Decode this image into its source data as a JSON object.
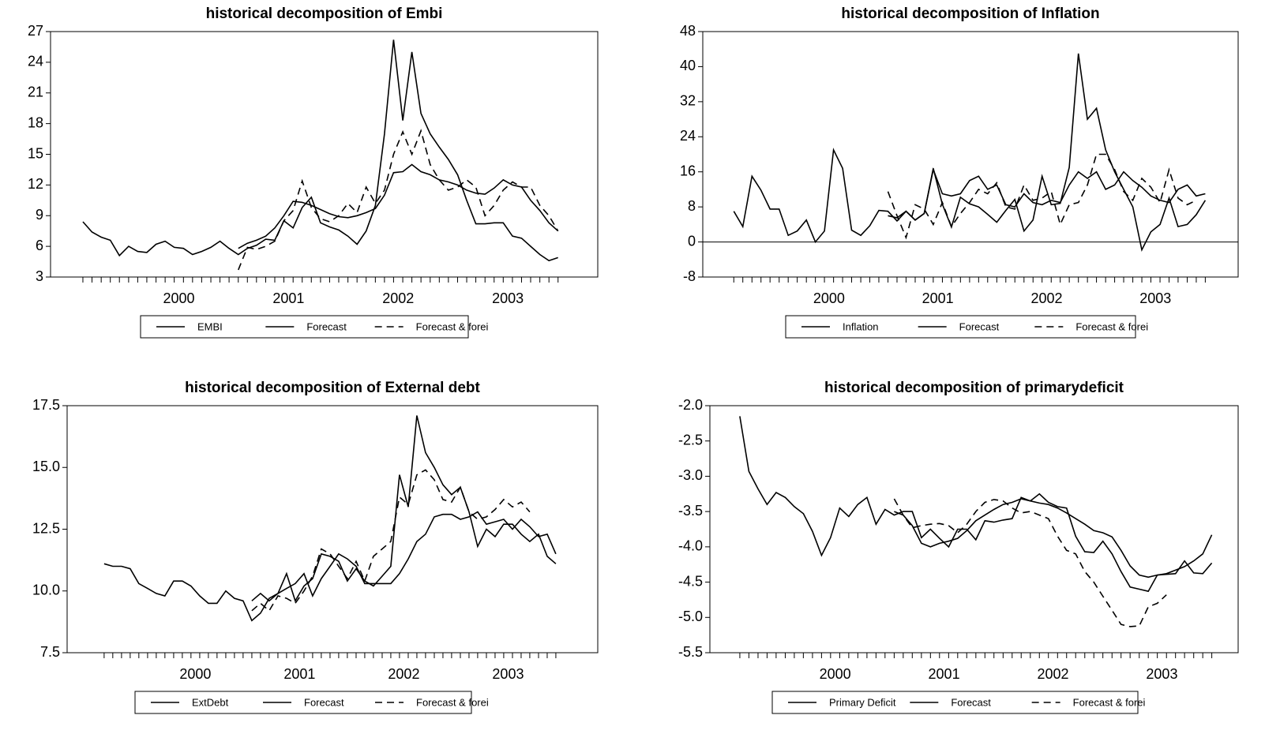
{
  "chart_data": [
    {
      "type": "line",
      "title": "historical decomposition of Embi",
      "x": [
        1999.625,
        1999.708,
        1999.792,
        1999.875,
        1999.958,
        2000.042,
        2000.125,
        2000.208,
        2000.292,
        2000.375,
        2000.458,
        2000.542,
        2000.625,
        2000.708,
        2000.792,
        2000.875,
        2000.958,
        2001.042,
        2001.125,
        2001.208,
        2001.292,
        2001.375,
        2001.458,
        2001.542,
        2001.625,
        2001.708,
        2001.792,
        2001.875,
        2001.958,
        2002.042,
        2002.125,
        2002.208,
        2002.292,
        2002.375,
        2002.458,
        2002.542,
        2002.625,
        2002.708,
        2002.792,
        2002.875,
        2002.958,
        2003.042,
        2003.125,
        2003.208,
        2003.292,
        2003.375,
        2003.458,
        2003.542,
        2003.625,
        2003.708,
        2003.792,
        2003.875,
        2003.958
      ],
      "xlim": [
        1999.33,
        2004.32
      ],
      "xticks": [
        {
          "value": 2000.5,
          "label": "2000"
        },
        {
          "value": 2001.5,
          "label": "2001"
        },
        {
          "value": 2002.5,
          "label": "2002"
        },
        {
          "value": 2003.5,
          "label": "2003"
        }
      ],
      "ylim": [
        3,
        27
      ],
      "yticks": [
        3,
        6,
        9,
        12,
        15,
        18,
        21,
        24,
        27
      ],
      "series": [
        {
          "name": "EMBI",
          "color": "#000000",
          "linestyle": "solid",
          "values": [
            8.4,
            7.4,
            6.9,
            6.6,
            5.1,
            6.0,
            5.5,
            5.4,
            6.2,
            6.5,
            5.9,
            5.8,
            5.2,
            5.5,
            5.9,
            6.5,
            5.8,
            5.2,
            5.8,
            6.1,
            6.7,
            6.6,
            8.5,
            7.8,
            9.8,
            10.8,
            8.3,
            7.9,
            7.6,
            7.0,
            6.2,
            7.5,
            10.0,
            17.0,
            26.2,
            18.3,
            25.0,
            19.0,
            17.0,
            15.7,
            14.5,
            13.0,
            10.5,
            8.2,
            8.2,
            8.3,
            8.3,
            7.0,
            6.8,
            6.0,
            5.2,
            4.6,
            4.9
          ]
        },
        {
          "name": "Forecast",
          "color": "#000000",
          "linestyle": "solid",
          "values": [
            null,
            null,
            null,
            null,
            null,
            null,
            null,
            null,
            null,
            null,
            null,
            null,
            null,
            null,
            null,
            null,
            null,
            5.8,
            6.3,
            6.6,
            7.0,
            7.8,
            9.0,
            10.4,
            10.3,
            10.0,
            9.6,
            9.2,
            8.9,
            8.8,
            9.0,
            9.3,
            9.7,
            11.0,
            13.2,
            13.3,
            14.0,
            13.3,
            13.0,
            12.5,
            12.3,
            12.0,
            11.5,
            11.2,
            11.1,
            11.7,
            12.5,
            12.0,
            11.8,
            10.5,
            9.5,
            8.3,
            7.5
          ]
        },
        {
          "name": "Forecast & forei",
          "color": "#000000",
          "linestyle": "dashed",
          "values": [
            null,
            null,
            null,
            null,
            null,
            null,
            null,
            null,
            null,
            null,
            null,
            null,
            null,
            null,
            null,
            null,
            null,
            3.7,
            5.9,
            5.7,
            6.0,
            6.5,
            8.5,
            9.5,
            12.4,
            9.8,
            8.7,
            8.4,
            9.0,
            10.2,
            9.3,
            11.8,
            10.2,
            11.5,
            15.0,
            17.2,
            15.0,
            17.3,
            14.0,
            12.5,
            11.5,
            11.8,
            12.5,
            11.8,
            9.0,
            10.0,
            11.5,
            12.3,
            11.8,
            11.8,
            10.0,
            9.0,
            7.5
          ]
        }
      ]
    },
    {
      "type": "line",
      "title": "historical decomposition of Inflation",
      "x": [
        1999.625,
        1999.708,
        1999.792,
        1999.875,
        1999.958,
        2000.042,
        2000.125,
        2000.208,
        2000.292,
        2000.375,
        2000.458,
        2000.542,
        2000.625,
        2000.708,
        2000.792,
        2000.875,
        2000.958,
        2001.042,
        2001.125,
        2001.208,
        2001.292,
        2001.375,
        2001.458,
        2001.542,
        2001.625,
        2001.708,
        2001.792,
        2001.875,
        2001.958,
        2002.042,
        2002.125,
        2002.208,
        2002.292,
        2002.375,
        2002.458,
        2002.542,
        2002.625,
        2002.708,
        2002.792,
        2002.875,
        2002.958,
        2003.042,
        2003.125,
        2003.208,
        2003.292,
        2003.375,
        2003.458,
        2003.542,
        2003.625,
        2003.708,
        2003.792,
        2003.875,
        2003.958
      ],
      "xlim": [
        1999.34,
        2004.26
      ],
      "xticks": [
        {
          "value": 2000.5,
          "label": "2000"
        },
        {
          "value": 2001.5,
          "label": "2001"
        },
        {
          "value": 2002.5,
          "label": "2002"
        },
        {
          "value": 2003.5,
          "label": "2003"
        }
      ],
      "ylim": [
        -8,
        48
      ],
      "yticks": [
        -8,
        0,
        8,
        16,
        24,
        32,
        40,
        48
      ],
      "reference_line": 0,
      "series": [
        {
          "name": "Inflation",
          "color": "#000000",
          "linestyle": "solid",
          "values": [
            7,
            3.5,
            15,
            11.8,
            7.5,
            7.5,
            1.5,
            2.5,
            5,
            0,
            2.5,
            21,
            16.8,
            2.7,
            1.5,
            3.7,
            7.2,
            7,
            4.8,
            7,
            5,
            6.5,
            16.8,
            8.6,
            3.4,
            10.2,
            8.7,
            8,
            6.3,
            4.5,
            7.2,
            9.7,
            2.5,
            5.0,
            15,
            8.5,
            8.8,
            17,
            43,
            28,
            30.5,
            21,
            16,
            12,
            8,
            -1.8,
            2.3,
            4,
            10,
            3.5,
            4,
            6.2,
            9.5
          ]
        },
        {
          "name": "Forecast",
          "color": "#000000",
          "linestyle": "solid",
          "values": [
            null,
            null,
            null,
            null,
            null,
            null,
            null,
            null,
            null,
            null,
            null,
            null,
            null,
            null,
            null,
            null,
            null,
            6,
            5.5,
            7,
            5,
            6.5,
            16.5,
            11,
            10.5,
            11,
            14,
            15,
            12,
            13,
            8.5,
            8,
            11,
            9,
            8.5,
            9.5,
            9,
            13,
            16,
            14.5,
            16,
            12,
            13,
            16,
            14,
            12.5,
            10.5,
            9.5,
            9,
            12,
            13,
            10.5,
            11
          ]
        },
        {
          "name": "Forecast & forei",
          "color": "#000000",
          "linestyle": "dashed",
          "values": [
            null,
            null,
            null,
            null,
            null,
            null,
            null,
            null,
            null,
            null,
            null,
            null,
            null,
            null,
            null,
            null,
            null,
            11.5,
            6,
            1,
            8.5,
            7.5,
            4,
            9,
            3.5,
            6.5,
            9,
            12,
            11,
            13.5,
            8,
            7.5,
            13,
            9.5,
            10,
            11.5,
            4,
            8.5,
            9,
            13,
            20,
            20,
            16.5,
            11.5,
            9.5,
            14.5,
            12.5,
            9,
            16.5,
            10,
            8.5,
            9.5,
            null
          ]
        }
      ]
    },
    {
      "type": "line",
      "title": "historical decomposition of External debt",
      "x": [
        1999.625,
        1999.708,
        1999.792,
        1999.875,
        1999.958,
        2000.042,
        2000.125,
        2000.208,
        2000.292,
        2000.375,
        2000.458,
        2000.542,
        2000.625,
        2000.708,
        2000.792,
        2000.875,
        2000.958,
        2001.042,
        2001.125,
        2001.208,
        2001.292,
        2001.375,
        2001.458,
        2001.542,
        2001.625,
        2001.708,
        2001.792,
        2001.875,
        2001.958,
        2002.042,
        2002.125,
        2002.208,
        2002.292,
        2002.375,
        2002.458,
        2002.542,
        2002.625,
        2002.708,
        2002.792,
        2002.875,
        2002.958,
        2003.042,
        2003.125,
        2003.208,
        2003.292,
        2003.375,
        2003.458,
        2003.542,
        2003.625,
        2003.708,
        2003.792,
        2003.875,
        2003.958
      ],
      "xlim": [
        1999.27,
        2004.36
      ],
      "xticks": [
        {
          "value": 2000.5,
          "label": "2000"
        },
        {
          "value": 2001.5,
          "label": "2001"
        },
        {
          "value": 2002.5,
          "label": "2002"
        },
        {
          "value": 2003.5,
          "label": "2003"
        }
      ],
      "ylim": [
        7.5,
        17.5
      ],
      "yticks": [
        7.5,
        {
          "value": 10,
          "label": "10.0"
        },
        12.5,
        {
          "value": 15,
          "label": "15.0"
        },
        17.5
      ],
      "series": [
        {
          "name": "ExtDebt",
          "color": "#000000",
          "linestyle": "solid",
          "values": [
            11.1,
            11.0,
            11.0,
            10.9,
            10.3,
            10.1,
            9.9,
            9.8,
            10.4,
            10.4,
            10.2,
            9.8,
            9.5,
            9.5,
            10.0,
            9.7,
            9.6,
            8.8,
            9.1,
            9.7,
            9.9,
            10.7,
            9.6,
            10.2,
            10.5,
            11.5,
            11.4,
            11.2,
            10.4,
            10.9,
            10.4,
            10.2,
            10.6,
            11.0,
            14.7,
            13.4,
            17.1,
            15.6,
            15.0,
            14.3,
            13.9,
            14.2,
            13.2,
            11.8,
            12.5,
            12.2,
            12.7,
            12.7,
            12.3,
            12.0,
            12.3,
            11.4,
            11.1
          ]
        },
        {
          "name": "Forecast",
          "color": "#000000",
          "linestyle": "solid",
          "values": [
            null,
            null,
            null,
            null,
            null,
            null,
            null,
            null,
            null,
            null,
            null,
            null,
            null,
            null,
            null,
            null,
            null,
            9.6,
            9.9,
            9.6,
            9.9,
            10.1,
            10.3,
            10.7,
            9.8,
            10.5,
            11.0,
            11.5,
            11.3,
            11.0,
            10.3,
            10.3,
            10.3,
            10.3,
            10.7,
            11.3,
            12.0,
            12.3,
            13.0,
            13.1,
            13.1,
            12.9,
            13.0,
            13.2,
            12.7,
            12.8,
            12.9,
            12.5,
            12.9,
            12.6,
            12.2,
            12.3,
            11.5
          ]
        },
        {
          "name": "Forecast & forei",
          "color": "#000000",
          "linestyle": "dashed",
          "values": [
            null,
            null,
            null,
            null,
            null,
            null,
            null,
            null,
            null,
            null,
            null,
            null,
            null,
            null,
            null,
            null,
            null,
            9.2,
            9.5,
            9.2,
            9.8,
            9.7,
            9.5,
            10.0,
            10.6,
            11.7,
            11.5,
            11.0,
            10.5,
            11.2,
            10.4,
            11.4,
            11.7,
            12.0,
            13.8,
            13.5,
            14.7,
            14.9,
            14.5,
            13.7,
            13.6,
            14.2,
            13.2,
            12.9,
            13.0,
            13.3,
            13.7,
            13.4,
            13.6,
            13.2,
            null,
            null,
            null
          ]
        }
      ]
    },
    {
      "type": "line",
      "title": "historical decomposition of primarydeficit",
      "x": [
        1999.625,
        1999.708,
        1999.792,
        1999.875,
        1999.958,
        2000.042,
        2000.125,
        2000.208,
        2000.292,
        2000.375,
        2000.458,
        2000.542,
        2000.625,
        2000.708,
        2000.792,
        2000.875,
        2000.958,
        2001.042,
        2001.125,
        2001.208,
        2001.292,
        2001.375,
        2001.458,
        2001.542,
        2001.625,
        2001.708,
        2001.792,
        2001.875,
        2001.958,
        2002.042,
        2002.125,
        2002.208,
        2002.292,
        2002.375,
        2002.458,
        2002.542,
        2002.625,
        2002.708,
        2002.792,
        2002.875,
        2002.958,
        2003.042,
        2003.125,
        2003.208,
        2003.292,
        2003.375,
        2003.458,
        2003.542,
        2003.625,
        2003.708,
        2003.792,
        2003.875,
        2003.958
      ],
      "xlim": [
        1999.35,
        2004.2
      ],
      "xticks": [
        {
          "value": 2000.5,
          "label": "2000"
        },
        {
          "value": 2001.5,
          "label": "2001"
        },
        {
          "value": 2002.5,
          "label": "2002"
        },
        {
          "value": 2003.5,
          "label": "2003"
        }
      ],
      "ylim": [
        -5.5,
        -2.0
      ],
      "yticks": [
        -5.5,
        {
          "value": -5,
          "label": "-5.0"
        },
        -4.5,
        {
          "value": -4,
          "label": "-4.0"
        },
        -3.5,
        {
          "value": -3,
          "label": "-3.0"
        },
        -2.5,
        {
          "value": -2,
          "label": "-2.0"
        }
      ],
      "series": [
        {
          "name": "Primary Deficit",
          "color": "#000000",
          "linestyle": "solid",
          "values": [
            -2.15,
            -2.93,
            -3.18,
            -3.4,
            -3.23,
            -3.3,
            -3.43,
            -3.53,
            -3.78,
            -4.12,
            -3.87,
            -3.45,
            -3.57,
            -3.4,
            -3.3,
            -3.68,
            -3.47,
            -3.55,
            -3.5,
            -3.5,
            -3.87,
            -3.75,
            -3.88,
            -4.0,
            -3.75,
            -3.75,
            -3.9,
            -3.63,
            -3.65,
            -3.62,
            -3.6,
            -3.3,
            -3.35,
            -3.25,
            -3.37,
            -3.43,
            -3.45,
            -3.85,
            -4.07,
            -4.08,
            -3.92,
            -4.1,
            -4.35,
            -4.57,
            -4.6,
            -4.63,
            -4.4,
            -4.39,
            -4.38,
            -4.2,
            -4.37,
            -4.38,
            -4.23
          ]
        },
        {
          "name": "Forecast",
          "color": "#000000",
          "linestyle": "solid",
          "values": [
            null,
            null,
            null,
            null,
            null,
            null,
            null,
            null,
            null,
            null,
            null,
            null,
            null,
            null,
            null,
            null,
            null,
            -3.5,
            -3.55,
            -3.7,
            -3.95,
            -4.0,
            -3.95,
            -3.92,
            -3.88,
            -3.77,
            -3.63,
            -3.55,
            -3.47,
            -3.4,
            -3.37,
            -3.32,
            -3.35,
            -3.38,
            -3.4,
            -3.45,
            -3.52,
            -3.6,
            -3.68,
            -3.77,
            -3.8,
            -3.86,
            -4.05,
            -4.27,
            -4.4,
            -4.43,
            -4.4,
            -4.38,
            -4.33,
            -4.28,
            -4.2,
            -4.1,
            -3.83
          ]
        },
        {
          "name": "Forecast & forei",
          "color": "#000000",
          "linestyle": "dashed",
          "values": [
            null,
            null,
            null,
            null,
            null,
            null,
            null,
            null,
            null,
            null,
            null,
            null,
            null,
            null,
            null,
            null,
            null,
            -3.32,
            -3.55,
            -3.73,
            -3.7,
            -3.68,
            -3.67,
            -3.7,
            -3.8,
            -3.68,
            -3.5,
            -3.37,
            -3.33,
            -3.35,
            -3.45,
            -3.52,
            -3.5,
            -3.55,
            -3.6,
            -3.85,
            -4.05,
            -4.1,
            -4.35,
            -4.5,
            -4.7,
            -4.9,
            -5.1,
            -5.13,
            -5.12,
            -4.85,
            -4.8,
            -4.68,
            null,
            null,
            null,
            null,
            null
          ]
        }
      ]
    }
  ]
}
